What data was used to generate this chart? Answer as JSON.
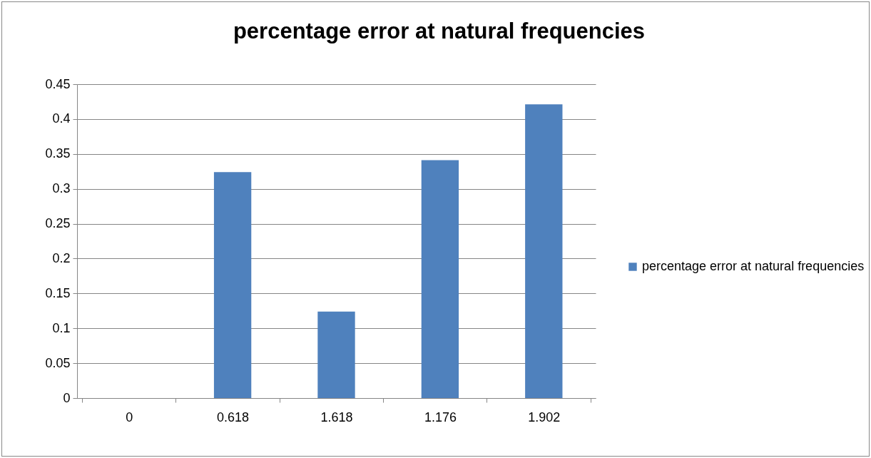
{
  "chart_data": {
    "type": "bar",
    "title": "percentage error at natural frequencies",
    "categories": [
      "0",
      "0.618",
      "1.618",
      "1.176",
      "1.902"
    ],
    "series": [
      {
        "name": "percentage error at natural frequencies",
        "color": "#4f81bd",
        "values": [
          0,
          0.324,
          0.124,
          0.341,
          0.421
        ]
      }
    ],
    "ylim": [
      0,
      0.45
    ],
    "yticks": [
      0,
      0.05,
      0.1,
      0.15,
      0.2,
      0.25,
      0.3,
      0.35,
      0.4,
      0.45
    ],
    "grid": "y",
    "legend": "right"
  }
}
